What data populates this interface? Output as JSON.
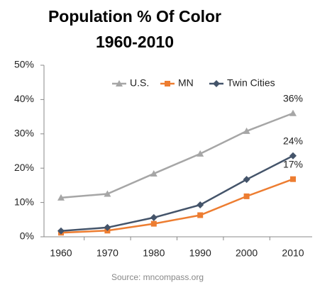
{
  "chart_data": {
    "type": "line",
    "title": "Population % Of Color",
    "subtitle": "1960-2010",
    "source": "Source: mncompass.org",
    "categories": [
      "1960",
      "1970",
      "1980",
      "1990",
      "2000",
      "2010"
    ],
    "series": [
      {
        "name": "U.S.",
        "color": "#a6a6a6",
        "marker": "triangle",
        "values": [
          11.4,
          12.5,
          18.4,
          24.2,
          30.8,
          36
        ],
        "value_labels": [
          null,
          null,
          null,
          null,
          null,
          "36%"
        ]
      },
      {
        "name": "MN",
        "color": "#ed7d31",
        "marker": "square",
        "values": [
          1.2,
          1.8,
          3.8,
          6.3,
          11.8,
          16.8
        ],
        "value_labels": [
          null,
          null,
          null,
          null,
          null,
          "17%"
        ]
      },
      {
        "name": "Twin Cities",
        "color": "#44546a",
        "marker": "diamond",
        "values": [
          1.7,
          2.7,
          5.6,
          9.3,
          16.7,
          23.6
        ],
        "value_labels": [
          null,
          null,
          null,
          null,
          null,
          "24%"
        ]
      }
    ],
    "ylim": [
      0,
      50
    ],
    "yticks": [
      {
        "value": 0,
        "label": "0%"
      },
      {
        "value": 10,
        "label": "10%"
      },
      {
        "value": 20,
        "label": "20%"
      },
      {
        "value": 30,
        "label": "30%"
      },
      {
        "value": 40,
        "label": "40%"
      },
      {
        "value": 50,
        "label": "50%"
      }
    ],
    "grid": false,
    "legend": "top"
  }
}
